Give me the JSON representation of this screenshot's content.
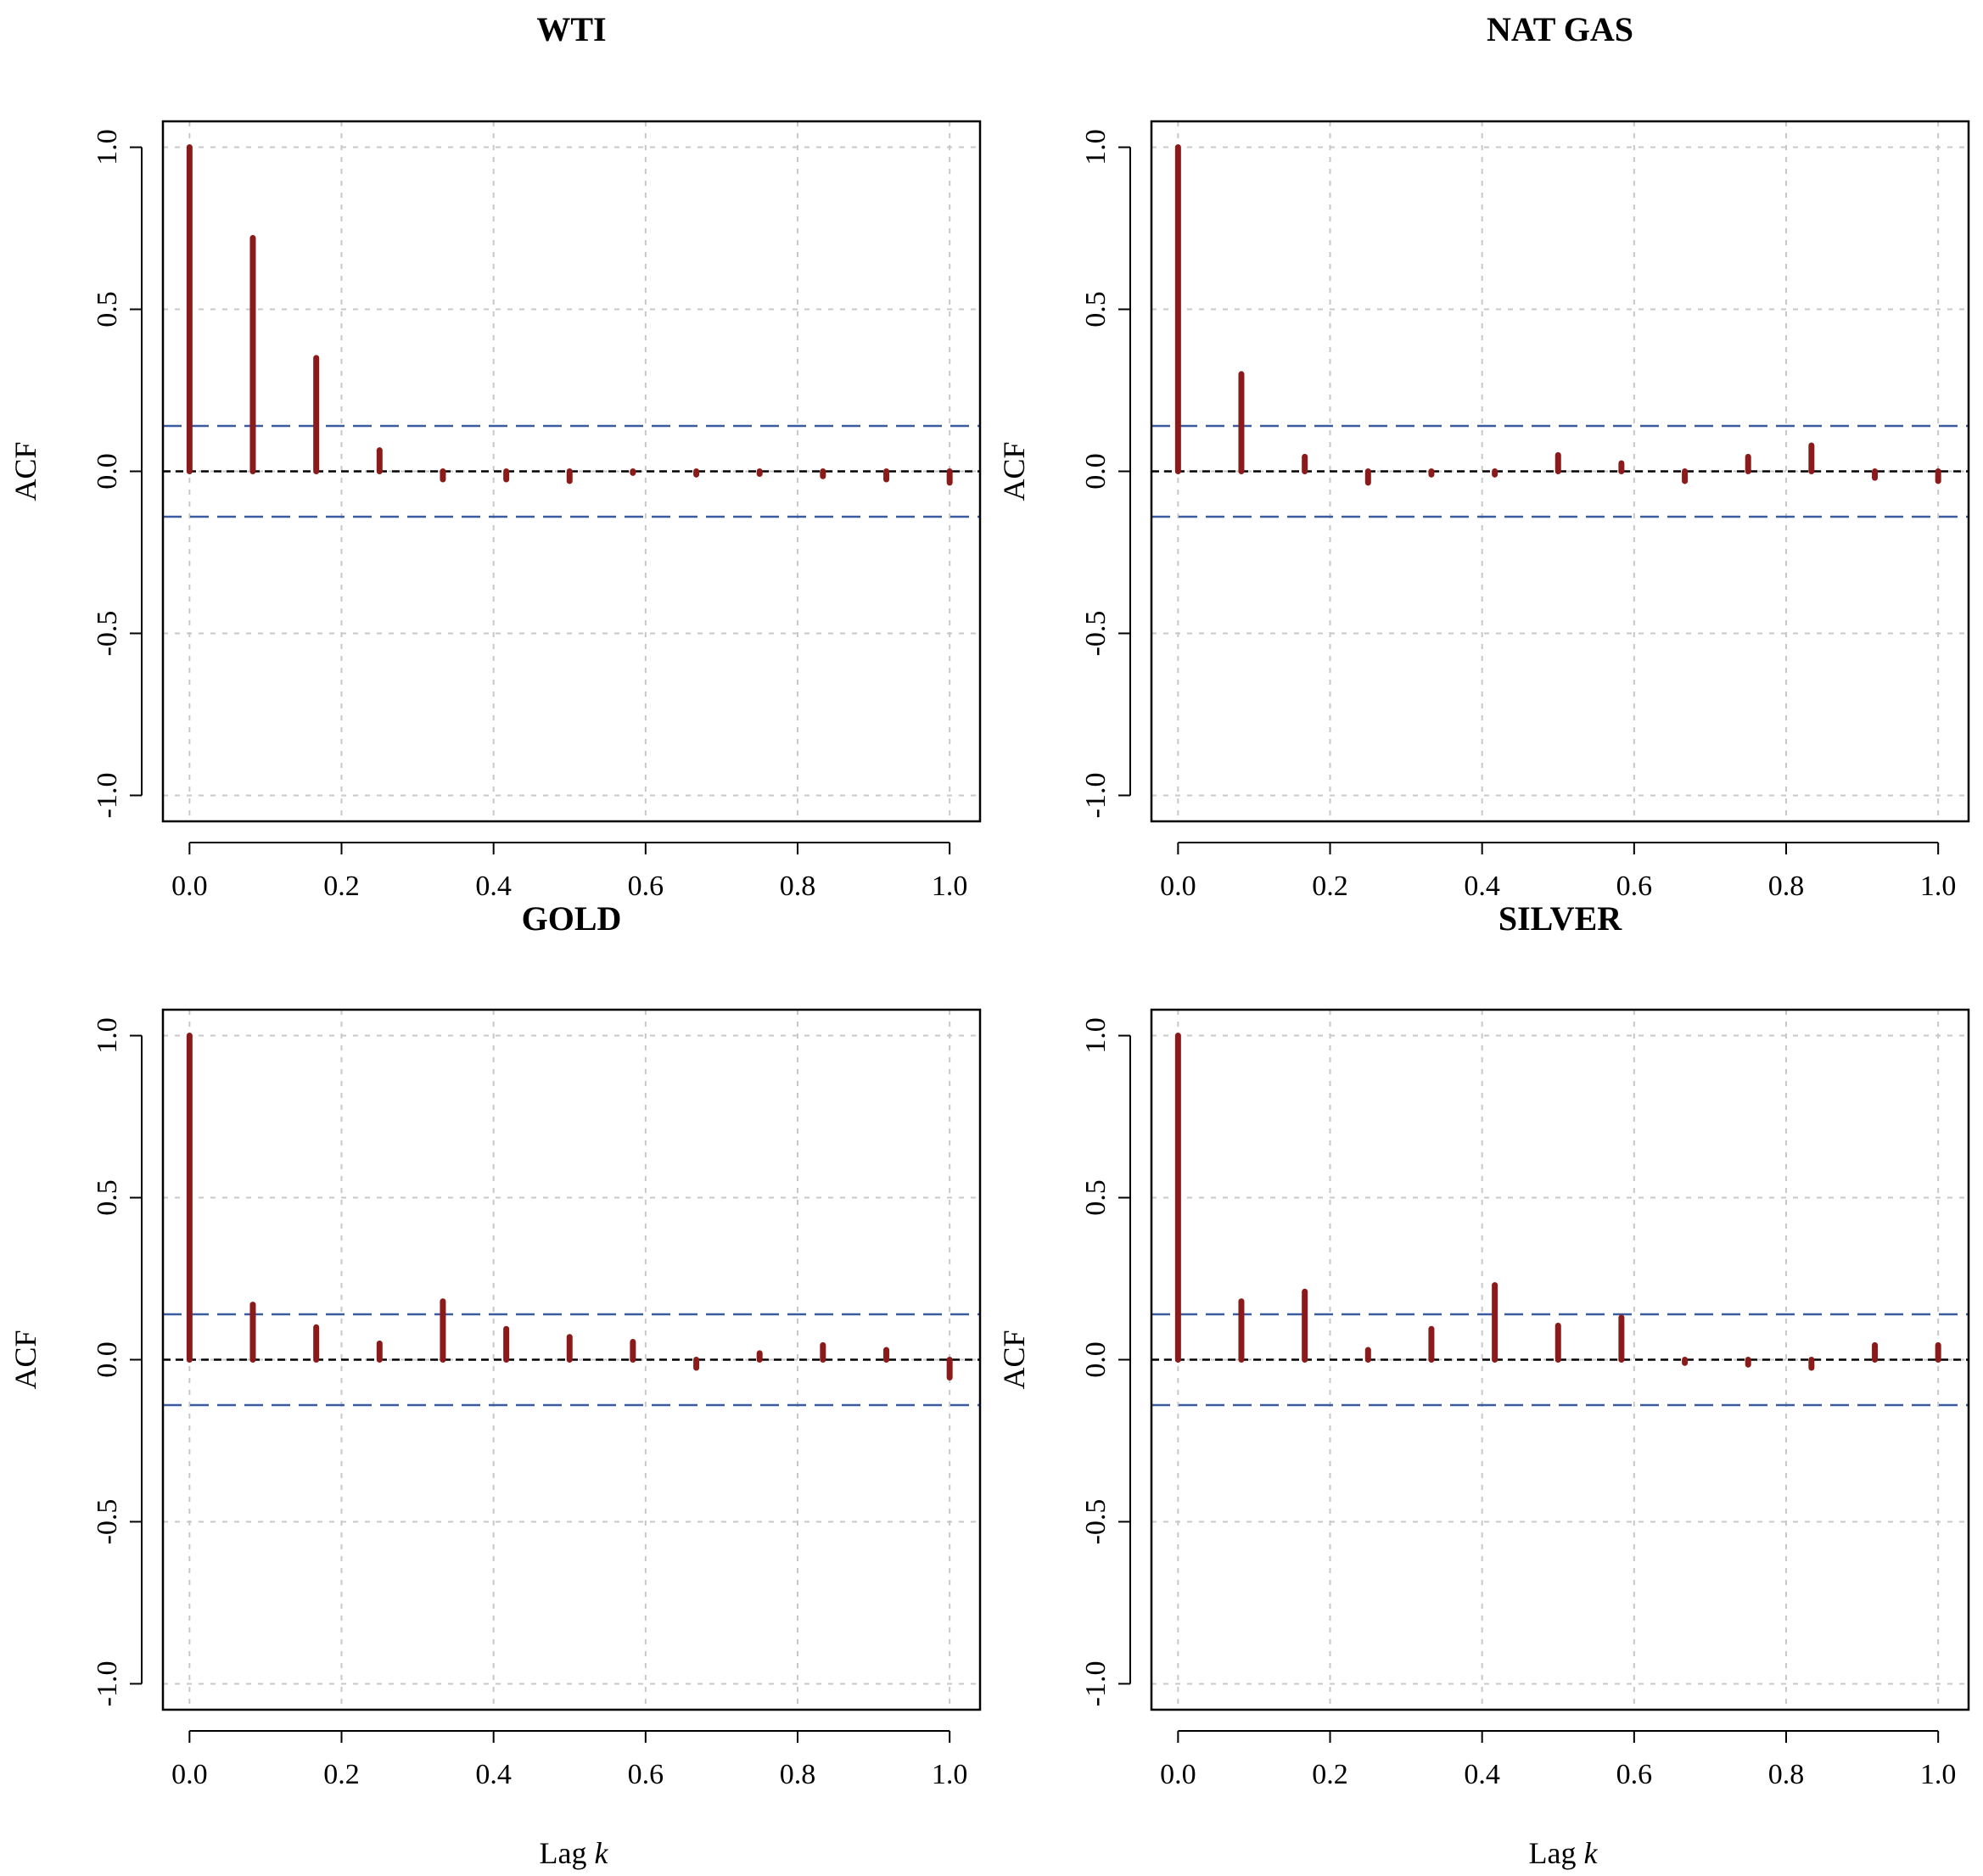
{
  "figure": {
    "xlabel_text": "Lag ",
    "xlabel_var": "k"
  },
  "colors": {
    "bar": "#8B1A1A",
    "confidence_band": "#3A5BA0",
    "zero_line": "#000000",
    "grid": "#C8C8C8",
    "frame": "#000000"
  },
  "chart_data": [
    {
      "type": "bar",
      "title": "WTI",
      "ylabel": "ACF",
      "xlabel": "Lag k",
      "x": [
        0,
        0.0833,
        0.1667,
        0.25,
        0.3333,
        0.4167,
        0.5,
        0.5833,
        0.6667,
        0.75,
        0.8333,
        0.9167,
        1.0
      ],
      "values": [
        1.0,
        0.72,
        0.35,
        0.065,
        -0.025,
        -0.025,
        -0.03,
        -0.005,
        -0.01,
        -0.008,
        -0.015,
        -0.025,
        -0.035
      ],
      "confidence_bound": 0.14,
      "xlim": [
        -0.035,
        1.04
      ],
      "ylim": [
        -1.08,
        1.08
      ],
      "xticks": [
        "0.0",
        "0.2",
        "0.4",
        "0.6",
        "0.8",
        "1.0"
      ],
      "yticks": [
        "-1.0",
        "-0.5",
        "0.0",
        "0.5",
        "1.0"
      ],
      "grid": true
    },
    {
      "type": "bar",
      "title": "NAT GAS",
      "ylabel": "ACF",
      "xlabel": "Lag k",
      "x": [
        0,
        0.0833,
        0.1667,
        0.25,
        0.3333,
        0.4167,
        0.5,
        0.5833,
        0.6667,
        0.75,
        0.8333,
        0.9167,
        1.0
      ],
      "values": [
        1.0,
        0.3,
        0.045,
        -0.035,
        -0.01,
        -0.01,
        0.05,
        0.025,
        -0.03,
        0.045,
        0.08,
        -0.02,
        -0.03
      ],
      "confidence_bound": 0.14,
      "xlim": [
        -0.035,
        1.04
      ],
      "ylim": [
        -1.08,
        1.08
      ],
      "xticks": [
        "0.0",
        "0.2",
        "0.4",
        "0.6",
        "0.8",
        "1.0"
      ],
      "yticks": [
        "-1.0",
        "-0.5",
        "0.0",
        "0.5",
        "1.0"
      ],
      "grid": true
    },
    {
      "type": "bar",
      "title": "GOLD",
      "ylabel": "ACF",
      "xlabel": "Lag k",
      "x": [
        0,
        0.0833,
        0.1667,
        0.25,
        0.3333,
        0.4167,
        0.5,
        0.5833,
        0.6667,
        0.75,
        0.8333,
        0.9167,
        1.0
      ],
      "values": [
        1.0,
        0.17,
        0.1,
        0.05,
        0.18,
        0.095,
        0.07,
        0.055,
        -0.025,
        0.02,
        0.045,
        0.03,
        -0.055
      ],
      "confidence_bound": 0.14,
      "xlim": [
        -0.035,
        1.04
      ],
      "ylim": [
        -1.08,
        1.08
      ],
      "xticks": [
        "0.0",
        "0.2",
        "0.4",
        "0.6",
        "0.8",
        "1.0"
      ],
      "yticks": [
        "-1.0",
        "-0.5",
        "0.0",
        "0.5",
        "1.0"
      ],
      "grid": true
    },
    {
      "type": "bar",
      "title": "SILVER",
      "ylabel": "ACF",
      "xlabel": "Lag k",
      "x": [
        0,
        0.0833,
        0.1667,
        0.25,
        0.3333,
        0.4167,
        0.5,
        0.5833,
        0.6667,
        0.75,
        0.8333,
        0.9167,
        1.0
      ],
      "values": [
        1.0,
        0.18,
        0.21,
        0.03,
        0.095,
        0.23,
        0.105,
        0.13,
        -0.01,
        -0.015,
        -0.025,
        0.045,
        0.045
      ],
      "confidence_bound": 0.14,
      "xlim": [
        -0.035,
        1.04
      ],
      "ylim": [
        -1.08,
        1.08
      ],
      "xticks": [
        "0.0",
        "0.2",
        "0.4",
        "0.6",
        "0.8",
        "1.0"
      ],
      "yticks": [
        "-1.0",
        "-0.5",
        "0.0",
        "0.5",
        "1.0"
      ],
      "grid": true
    }
  ]
}
